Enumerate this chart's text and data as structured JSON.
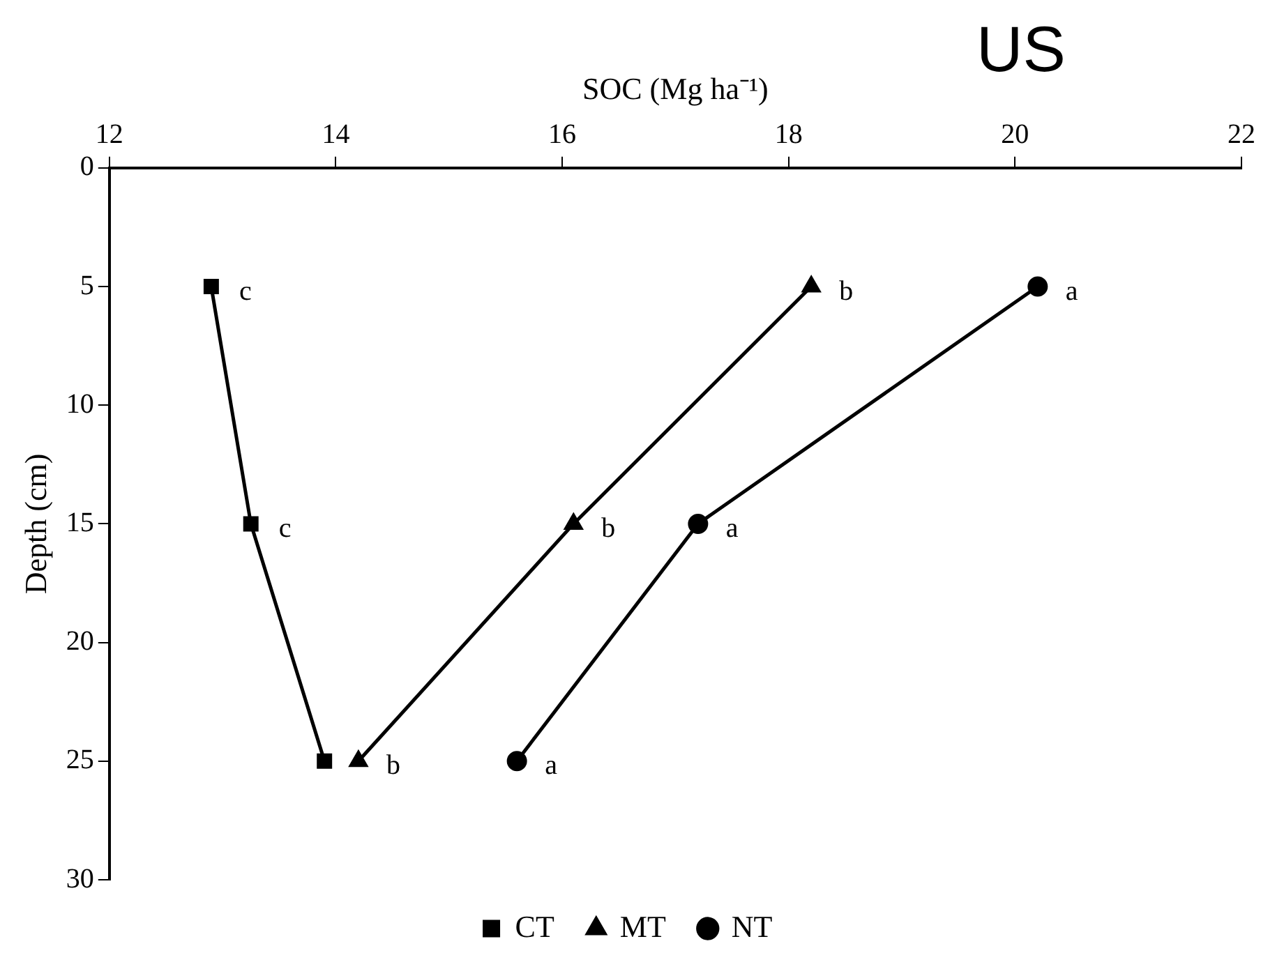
{
  "chart_data": {
    "type": "line",
    "xlabel": "SOC (Mg ha⁻¹)",
    "ylabel": "Depth (cm)",
    "xlim": [
      12,
      22
    ],
    "xticks": [
      12,
      14,
      16,
      18,
      20,
      22
    ],
    "ylim": [
      30,
      0
    ],
    "yticks": [
      0,
      5,
      10,
      15,
      20,
      25,
      30
    ],
    "grid": false,
    "legend": "bottom",
    "line_style": "solid",
    "series": [
      {
        "name": "CT",
        "color": "#000000",
        "marker": "square",
        "x": [
          12.9,
          13.25,
          13.9
        ],
        "values": [
          5,
          15,
          25
        ]
      },
      {
        "name": "MT",
        "color": "#000000",
        "marker": "triangle",
        "x": [
          18.2,
          16.1,
          14.2
        ],
        "values": [
          5,
          15,
          25
        ]
      },
      {
        "name": "NT",
        "color": "#000000",
        "marker": "circle",
        "x": [
          20.2,
          17.2,
          15.6
        ],
        "values": [
          5,
          15,
          25
        ]
      }
    ],
    "annotations": [
      {
        "text": "c",
        "x": 12.9,
        "y": 5
      },
      {
        "text": "c",
        "x": 13.25,
        "y": 15
      },
      {
        "text": "b",
        "x": 18.2,
        "y": 5
      },
      {
        "text": "b",
        "x": 16.1,
        "y": 15
      },
      {
        "text": "b",
        "x": 14.2,
        "y": 25
      },
      {
        "text": "a",
        "x": 20.2,
        "y": 5
      },
      {
        "text": "a",
        "x": 17.2,
        "y": 15
      },
      {
        "text": "a",
        "x": 15.6,
        "y": 25
      },
      "US"
    ]
  }
}
